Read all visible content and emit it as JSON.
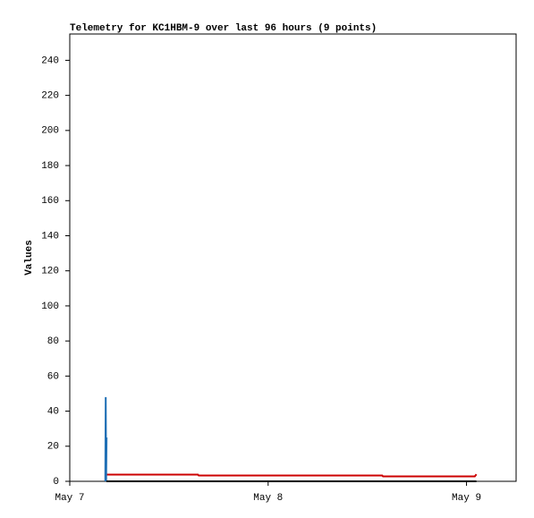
{
  "chart_data": {
    "type": "line",
    "title": "Telemetry for KC1HBM-9 over last 96 hours (9 points)",
    "y_label": "Values",
    "x": null,
    "series": [
      {
        "color": "#cc0000",
        "x": [
          4.43,
          15.5,
          15.6,
          37.8,
          37.9,
          49.0,
          49.2
        ],
        "values": [
          3.8,
          3.8,
          3.3,
          3.3,
          2.8,
          2.8,
          4
        ]
      },
      {
        "color": "#1f6fb5",
        "x": [
          4.3,
          4.35,
          4.4,
          4.45
        ],
        "values": [
          0,
          48,
          0,
          25
        ]
      },
      {
        "color": "#000000",
        "x": [
          4.43,
          49.19
        ],
        "values": [
          0,
          0
        ]
      }
    ],
    "xlim": [
      0,
      54
    ],
    "xticks": [
      {
        "value": 0,
        "label": "May 7"
      },
      {
        "value": 24,
        "label": "May 8"
      },
      {
        "value": 48,
        "label": "May 9"
      }
    ],
    "ylim": [
      0,
      255
    ],
    "yticks": [
      0,
      20,
      40,
      60,
      80,
      100,
      120,
      140,
      160,
      180,
      200,
      220,
      240
    ],
    "grid": false
  }
}
